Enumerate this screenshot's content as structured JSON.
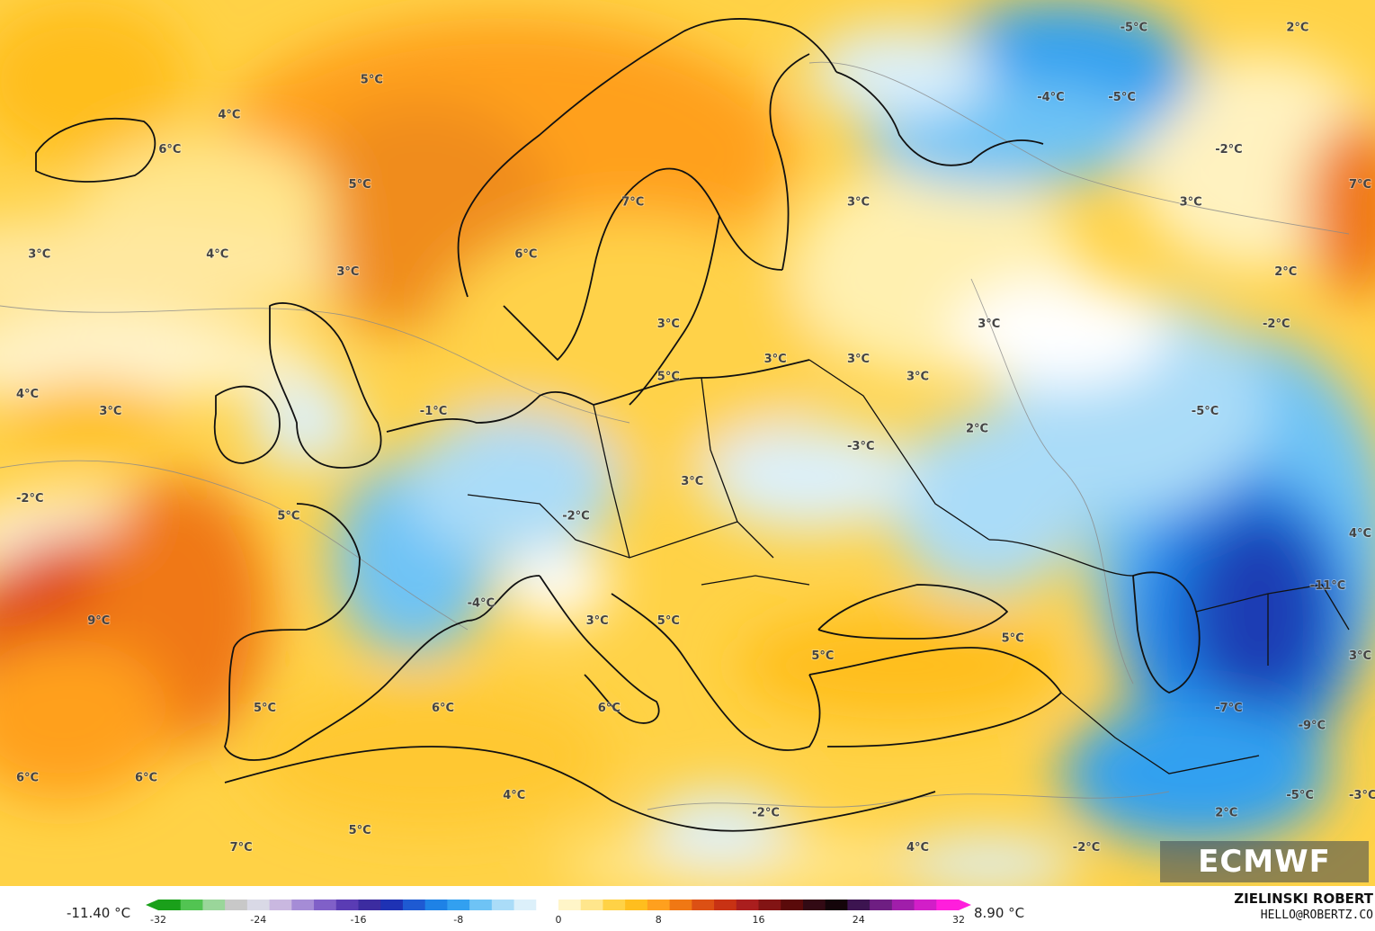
{
  "map": {
    "labels": [
      {
        "text": "5°C",
        "lon": -16,
        "lat": 70
      },
      {
        "text": "4°C",
        "lon": -28,
        "lat": 68
      },
      {
        "text": "6°C",
        "lon": -33,
        "lat": 66
      },
      {
        "text": "5°C",
        "lon": -17,
        "lat": 64
      },
      {
        "text": "7°C",
        "lon": 6,
        "lat": 63
      },
      {
        "text": "6°C",
        "lon": -3,
        "lat": 60
      },
      {
        "text": "3°C",
        "lon": -44,
        "lat": 60
      },
      {
        "text": "4°C",
        "lon": -29,
        "lat": 60
      },
      {
        "text": "3°C",
        "lon": -18,
        "lat": 59
      },
      {
        "text": "3°C",
        "lon": 25,
        "lat": 63
      },
      {
        "text": "3°C",
        "lon": 9,
        "lat": 56
      },
      {
        "text": "3°C",
        "lon": 18,
        "lat": 54
      },
      {
        "text": "3°C",
        "lon": 25,
        "lat": 54
      },
      {
        "text": "3°C",
        "lon": 30,
        "lat": 53
      },
      {
        "text": "3°C",
        "lon": 36,
        "lat": 56
      },
      {
        "text": "5°C",
        "lon": 9,
        "lat": 53
      },
      {
        "text": "4°C",
        "lon": -45,
        "lat": 52
      },
      {
        "text": "3°C",
        "lon": -38,
        "lat": 51
      },
      {
        "text": "-1°C",
        "lon": -11,
        "lat": 51
      },
      {
        "text": "2°C",
        "lon": 35,
        "lat": 50
      },
      {
        "text": "-3°C",
        "lon": 25,
        "lat": 49
      },
      {
        "text": "-2°C",
        "lon": -45,
        "lat": 46
      },
      {
        "text": "5°C",
        "lon": -23,
        "lat": 45
      },
      {
        "text": "-2°C",
        "lon": 1,
        "lat": 45
      },
      {
        "text": "3°C",
        "lon": 11,
        "lat": 47
      },
      {
        "text": "-4°C",
        "lon": -7,
        "lat": 40
      },
      {
        "text": "9°C",
        "lon": -39,
        "lat": 39
      },
      {
        "text": "3°C",
        "lon": 3,
        "lat": 39
      },
      {
        "text": "5°C",
        "lon": 9,
        "lat": 39
      },
      {
        "text": "5°C",
        "lon": 22,
        "lat": 37
      },
      {
        "text": "5°C",
        "lon": 38,
        "lat": 38
      },
      {
        "text": "6°C",
        "lon": -10,
        "lat": 34
      },
      {
        "text": "6°C",
        "lon": 4,
        "lat": 34
      },
      {
        "text": "5°C",
        "lon": -25,
        "lat": 34
      },
      {
        "text": "6°C",
        "lon": -45,
        "lat": 30
      },
      {
        "text": "6°C",
        "lon": -35,
        "lat": 30
      },
      {
        "text": "4°C",
        "lon": -4,
        "lat": 29
      },
      {
        "text": "-2°C",
        "lon": 17,
        "lat": 28
      },
      {
        "text": "7°C",
        "lon": -27,
        "lat": 26
      },
      {
        "text": "5°C",
        "lon": -17,
        "lat": 27
      },
      {
        "text": "4°C",
        "lon": 30,
        "lat": 26
      },
      {
        "text": "-2°C",
        "lon": 44,
        "lat": 26
      },
      {
        "text": "2°C",
        "lon": 56,
        "lat": 28
      },
      {
        "text": "-5°C",
        "lon": 48,
        "lat": 73
      },
      {
        "text": "2°C",
        "lon": 62,
        "lat": 73
      },
      {
        "text": "-4°C",
        "lon": 41,
        "lat": 69
      },
      {
        "text": "-5°C",
        "lon": 47,
        "lat": 69
      },
      {
        "text": "-2°C",
        "lon": 56,
        "lat": 66
      },
      {
        "text": "7°C",
        "lon": 70,
        "lat": 64
      },
      {
        "text": "3°C",
        "lon": 53,
        "lat": 63
      },
      {
        "text": "2°C",
        "lon": 61,
        "lat": 59
      },
      {
        "text": "-2°C",
        "lon": 60,
        "lat": 56
      },
      {
        "text": "-5°C",
        "lon": 54,
        "lat": 51
      },
      {
        "text": "4°C",
        "lon": 70,
        "lat": 44
      },
      {
        "text": "-11°C",
        "lon": 64,
        "lat": 41
      },
      {
        "text": "3°C",
        "lon": 70,
        "lat": 37
      },
      {
        "text": "-7°C",
        "lon": 56,
        "lat": 34
      },
      {
        "text": "-9°C",
        "lon": 63,
        "lat": 33
      },
      {
        "text": "-3°C",
        "lon": 69,
        "lat": 29
      },
      {
        "text": "-5°C",
        "lon": 62,
        "lat": 29
      }
    ]
  },
  "legend": {
    "min_label": "-11.40 °C",
    "max_label": "8.90 °C",
    "ticks": [
      "-32",
      "-24",
      "-16",
      "-8",
      "0",
      "8",
      "16",
      "24",
      "32"
    ],
    "colors": [
      "#1aa01a",
      "#52c452",
      "#9ad69a",
      "#c8c8c8",
      "#d9d9e6",
      "#c9b8e0",
      "#a58cd6",
      "#8060c8",
      "#5a3cb4",
      "#3c2ca0",
      "#1e32b4",
      "#1e5ad2",
      "#1e82e6",
      "#32a0f0",
      "#6ec3f5",
      "#aadcf8",
      "#dcf0fa",
      "#ffffff",
      "#fff5c8",
      "#ffe68c",
      "#ffd246",
      "#ffbe1e",
      "#ffa01e",
      "#f07814",
      "#dc5014",
      "#c83214",
      "#aa1e1e",
      "#821414",
      "#5a0a0a",
      "#320a14",
      "#14050a",
      "#3c1450",
      "#6e1e82",
      "#a01eaa",
      "#d21ec8",
      "#ff1edc"
    ]
  },
  "logo": {
    "text": "ECMWF"
  },
  "credit": {
    "name": "ZIELINSKI ROBERT",
    "email": "HELLO@ROBERTZ.CO"
  }
}
